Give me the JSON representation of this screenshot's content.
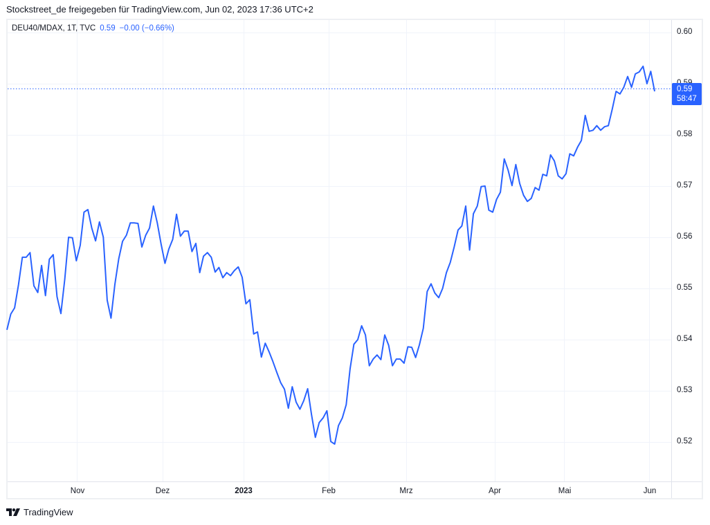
{
  "header": {
    "attribution": "Stockstreet_de freigegeben für TradingView.com, Jun 02, 2023 17:36 UTC+2"
  },
  "legend": {
    "symbol": "DEU40/MDAX, 1T, TVC",
    "last": "0.59",
    "change": "−0.00 (−0.66%)"
  },
  "price_axis": {
    "labels": [
      "0.60",
      "0.59",
      "0.58",
      "0.57",
      "0.56",
      "0.55",
      "0.54",
      "0.53",
      "0.52"
    ]
  },
  "price_tag": {
    "price": "0.59",
    "countdown": "58:47",
    "color": "#2962ff"
  },
  "time_axis": {
    "labels": [
      "Nov",
      "Dez",
      "2023",
      "Feb",
      "Mrz",
      "Apr",
      "Mai",
      "Jun"
    ]
  },
  "footer": {
    "brand": "TradingView"
  },
  "chart_data": {
    "type": "line",
    "title": "DEU40/MDAX, 1T, TVC",
    "xlabel": "",
    "ylabel": "",
    "x_ticks": [
      "Nov",
      "Dez",
      "2023",
      "Feb",
      "Mrz",
      "Apr",
      "Mai",
      "Jun"
    ],
    "ylim": [
      0.513,
      0.607
    ],
    "y_ticks": [
      0.52,
      0.53,
      0.54,
      0.55,
      0.56,
      0.57,
      0.58,
      0.59,
      0.6
    ],
    "grid": true,
    "line_color": "#2962ff",
    "last_value": 0.589,
    "series": [
      {
        "name": "DEU40/MDAX",
        "values": [
          0.5419,
          0.545,
          0.5462,
          0.5507,
          0.5561,
          0.5561,
          0.557,
          0.5505,
          0.5492,
          0.5545,
          0.5486,
          0.5557,
          0.5566,
          0.5484,
          0.5451,
          0.5518,
          0.56,
          0.5599,
          0.5554,
          0.5584,
          0.5649,
          0.5654,
          0.5618,
          0.5593,
          0.563,
          0.56,
          0.5477,
          0.5442,
          0.5508,
          0.5558,
          0.5592,
          0.5604,
          0.5628,
          0.5628,
          0.5627,
          0.5581,
          0.5604,
          0.5618,
          0.5661,
          0.5628,
          0.5586,
          0.5549,
          0.5577,
          0.5596,
          0.5645,
          0.5602,
          0.5612,
          0.5612,
          0.5572,
          0.5588,
          0.5531,
          0.5563,
          0.557,
          0.5561,
          0.5532,
          0.5541,
          0.5521,
          0.5531,
          0.5525,
          0.5535,
          0.5542,
          0.5522,
          0.547,
          0.5478,
          0.5411,
          0.5415,
          0.5366,
          0.5393,
          0.5376,
          0.5357,
          0.5336,
          0.5316,
          0.5303,
          0.5266,
          0.5308,
          0.5278,
          0.5264,
          0.5281,
          0.5304,
          0.5254,
          0.5209,
          0.5238,
          0.5247,
          0.5261,
          0.5201,
          0.5196,
          0.5232,
          0.5247,
          0.5273,
          0.5343,
          0.5391,
          0.54,
          0.5427,
          0.5409,
          0.5349,
          0.5362,
          0.537,
          0.5361,
          0.5409,
          0.5389,
          0.5349,
          0.5362,
          0.5362,
          0.5354,
          0.5386,
          0.5385,
          0.5365,
          0.539,
          0.5422,
          0.5494,
          0.5509,
          0.5491,
          0.5482,
          0.55,
          0.5531,
          0.5551,
          0.5581,
          0.5614,
          0.5622,
          0.5661,
          0.5575,
          0.5646,
          0.5661,
          0.5699,
          0.57,
          0.5653,
          0.5649,
          0.5674,
          0.5688,
          0.5753,
          0.5731,
          0.5701,
          0.5742,
          0.5705,
          0.5682,
          0.567,
          0.5676,
          0.5697,
          0.5692,
          0.5723,
          0.572,
          0.5761,
          0.5749,
          0.572,
          0.5714,
          0.5724,
          0.5763,
          0.5759,
          0.5776,
          0.5789,
          0.5838,
          0.5807,
          0.5809,
          0.5818,
          0.5809,
          0.5816,
          0.5818,
          0.585,
          0.5885,
          0.588,
          0.5893,
          0.5914,
          0.5893,
          0.5919,
          0.5923,
          0.5934,
          0.59,
          0.5924,
          0.5885
        ]
      }
    ]
  }
}
